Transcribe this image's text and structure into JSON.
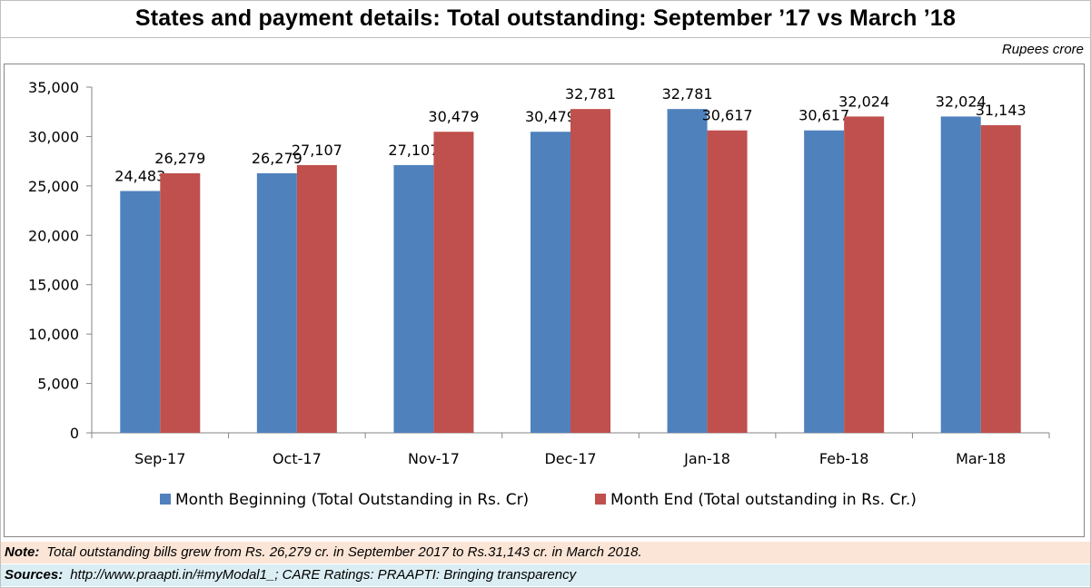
{
  "title": "States and payment details: Total outstanding: September ’17 vs March ’18",
  "units": "Rupees crore",
  "note": {
    "label": "Note:",
    "text": "Total outstanding bills grew from Rs. 26,279 cr. in September 2017 to Rs.31,143 cr. in March 2018."
  },
  "sources": {
    "label": "Sources:",
    "text": "http://www.praapti.in/#myModal1_; CARE Ratings: PRAAPTI: Bringing transparency"
  },
  "colors": {
    "month_beginning": "#4f81bd",
    "month_end": "#c0504d",
    "axis": "#868686"
  },
  "chart_data": {
    "type": "bar",
    "categories": [
      "Sep-17",
      "Oct-17",
      "Nov-17",
      "Dec-17",
      "Jan-18",
      "Feb-18",
      "Mar-18"
    ],
    "series": [
      {
        "name": "Month Beginning (Total Outstanding in Rs. Cr)",
        "values": [
          24483,
          26279,
          27107,
          30479,
          32781,
          30617,
          32024
        ],
        "labels": [
          "24,483",
          "26,279",
          "27,107",
          "30,479",
          "32,781",
          "30,617",
          "32,024"
        ]
      },
      {
        "name": "Month End (Total outstanding in Rs. Cr.)",
        "values": [
          26279,
          27107,
          30479,
          32781,
          30617,
          32024,
          31143
        ],
        "labels": [
          "26,279",
          "27,107",
          "30,479",
          "32,781",
          "30,617",
          "32,024",
          "31,143"
        ]
      }
    ],
    "yticks": [
      0,
      5000,
      10000,
      15000,
      20000,
      25000,
      30000,
      35000
    ],
    "ytick_labels": [
      "0",
      "5,000",
      "10,000",
      "15,000",
      "20,000",
      "25,000",
      "30,000",
      "35,000"
    ],
    "ylim": [
      0,
      35000
    ],
    "grid": false,
    "legend_position": "bottom"
  }
}
